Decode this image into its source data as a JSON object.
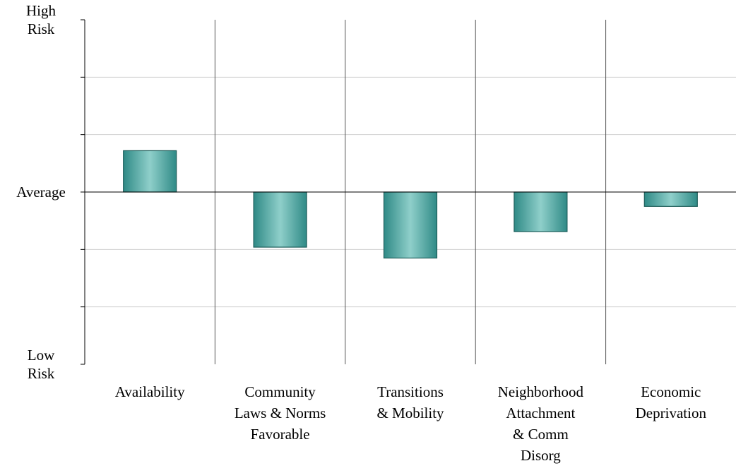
{
  "chart_data": {
    "type": "bar",
    "categories": [
      [
        "Availability"
      ],
      [
        "Community",
        "Laws & Norms",
        "Favorable"
      ],
      [
        "Transitions",
        "& Mobility"
      ],
      [
        "Neighborhood",
        "Attachment",
        "& Comm",
        "Disorg"
      ],
      [
        "Economic",
        "Deprivation"
      ]
    ],
    "values": [
      0.72,
      -0.96,
      -1.15,
      -0.69,
      -0.25
    ],
    "ylim": [
      -3,
      3
    ],
    "yticks": [
      {
        "value": 3,
        "lines": [
          "High",
          "Risk"
        ]
      },
      {
        "value": 0,
        "lines": [
          "Average"
        ]
      },
      {
        "value": -3,
        "lines": [
          "Low",
          "Risk"
        ]
      }
    ],
    "grid": true,
    "colors": {
      "bar_edge": "#1f5f5c",
      "bar_dark": "#2f8a86",
      "bar_light": "#8fcfca",
      "axis": "#000000",
      "grid": "#d0d0d0"
    }
  }
}
